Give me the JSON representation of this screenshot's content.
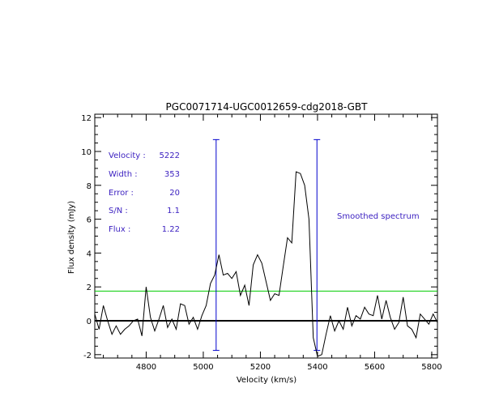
{
  "chart_data": {
    "type": "line",
    "title": "PGC0071714-UGC0012659-cdg2018-GBT",
    "xlabel": "Velocity (km/s)",
    "ylabel": "Flux density (mJy)",
    "xlim": [
      4620,
      5820
    ],
    "ylim": [
      -2.2,
      12.2
    ],
    "x_ticks": [
      4800,
      5000,
      5200,
      5400,
      5600,
      5800
    ],
    "y_ticks": [
      -2,
      0,
      2,
      4,
      6,
      8,
      10,
      12
    ],
    "grid": false,
    "series": [
      {
        "color": "#000000",
        "x": [
          4620,
          4635,
          4650,
          4665,
          4680,
          4695,
          4710,
          4725,
          4740,
          4755,
          4770,
          4785,
          4800,
          4815,
          4830,
          4845,
          4860,
          4875,
          4890,
          4905,
          4920,
          4935,
          4950,
          4965,
          4980,
          4995,
          5010,
          5025,
          5040,
          5055,
          5070,
          5085,
          5100,
          5115,
          5130,
          5145,
          5160,
          5175,
          5190,
          5205,
          5220,
          5235,
          5250,
          5265,
          5280,
          5295,
          5310,
          5325,
          5340,
          5355,
          5370,
          5385,
          5400,
          5415,
          5430,
          5445,
          5460,
          5475,
          5490,
          5505,
          5520,
          5535,
          5550,
          5565,
          5580,
          5595,
          5610,
          5625,
          5640,
          5655,
          5670,
          5685,
          5700,
          5715,
          5730,
          5745,
          5760,
          5775,
          5790,
          5805,
          5820
        ],
        "y": [
          0.4,
          -0.5,
          0.9,
          0.0,
          -0.8,
          -0.3,
          -0.8,
          -0.5,
          -0.3,
          0.0,
          0.1,
          -0.9,
          2.0,
          0.2,
          -0.6,
          0.1,
          0.9,
          -0.4,
          0.1,
          -0.5,
          1.0,
          0.9,
          -0.2,
          0.2,
          -0.5,
          0.3,
          0.9,
          2.2,
          2.7,
          3.9,
          2.7,
          2.8,
          2.5,
          2.9,
          1.5,
          2.1,
          0.9,
          3.3,
          3.9,
          3.4,
          2.3,
          1.2,
          1.6,
          1.5,
          3.2,
          4.9,
          4.6,
          8.8,
          8.7,
          8.0,
          6.0,
          -1.0,
          -2.1,
          -2.0,
          -0.8,
          0.3,
          -0.6,
          0.0,
          -0.5,
          0.8,
          -0.3,
          0.3,
          0.1,
          0.8,
          0.4,
          0.3,
          1.5,
          0.1,
          1.2,
          0.2,
          -0.5,
          -0.1,
          1.4,
          -0.3,
          -0.5,
          -1.0,
          0.4,
          0.1,
          -0.2,
          0.4,
          -0.1
        ]
      }
    ],
    "hlines": [
      {
        "y": 0,
        "color": "#000000"
      },
      {
        "y": 1.75,
        "color": "#00cc00"
      }
    ],
    "vlines": [
      {
        "x": 5045,
        "y0": -1.75,
        "y1": 10.7,
        "color": "#0000cc"
      },
      {
        "x": 5398,
        "y0": -1.75,
        "y1": 10.7,
        "color": "#0000cc"
      }
    ]
  },
  "annotations": {
    "rows": [
      {
        "label": "Velocity :",
        "value": "5222"
      },
      {
        "label": "Width :",
        "value": "353"
      },
      {
        "label": "Error :",
        "value": "20"
      },
      {
        "label": "S/N :",
        "value": "1.1"
      },
      {
        "label": "Flux :",
        "value": "1.22"
      }
    ],
    "note": "Smoothed spectrum",
    "color": "#3a1fc0"
  }
}
